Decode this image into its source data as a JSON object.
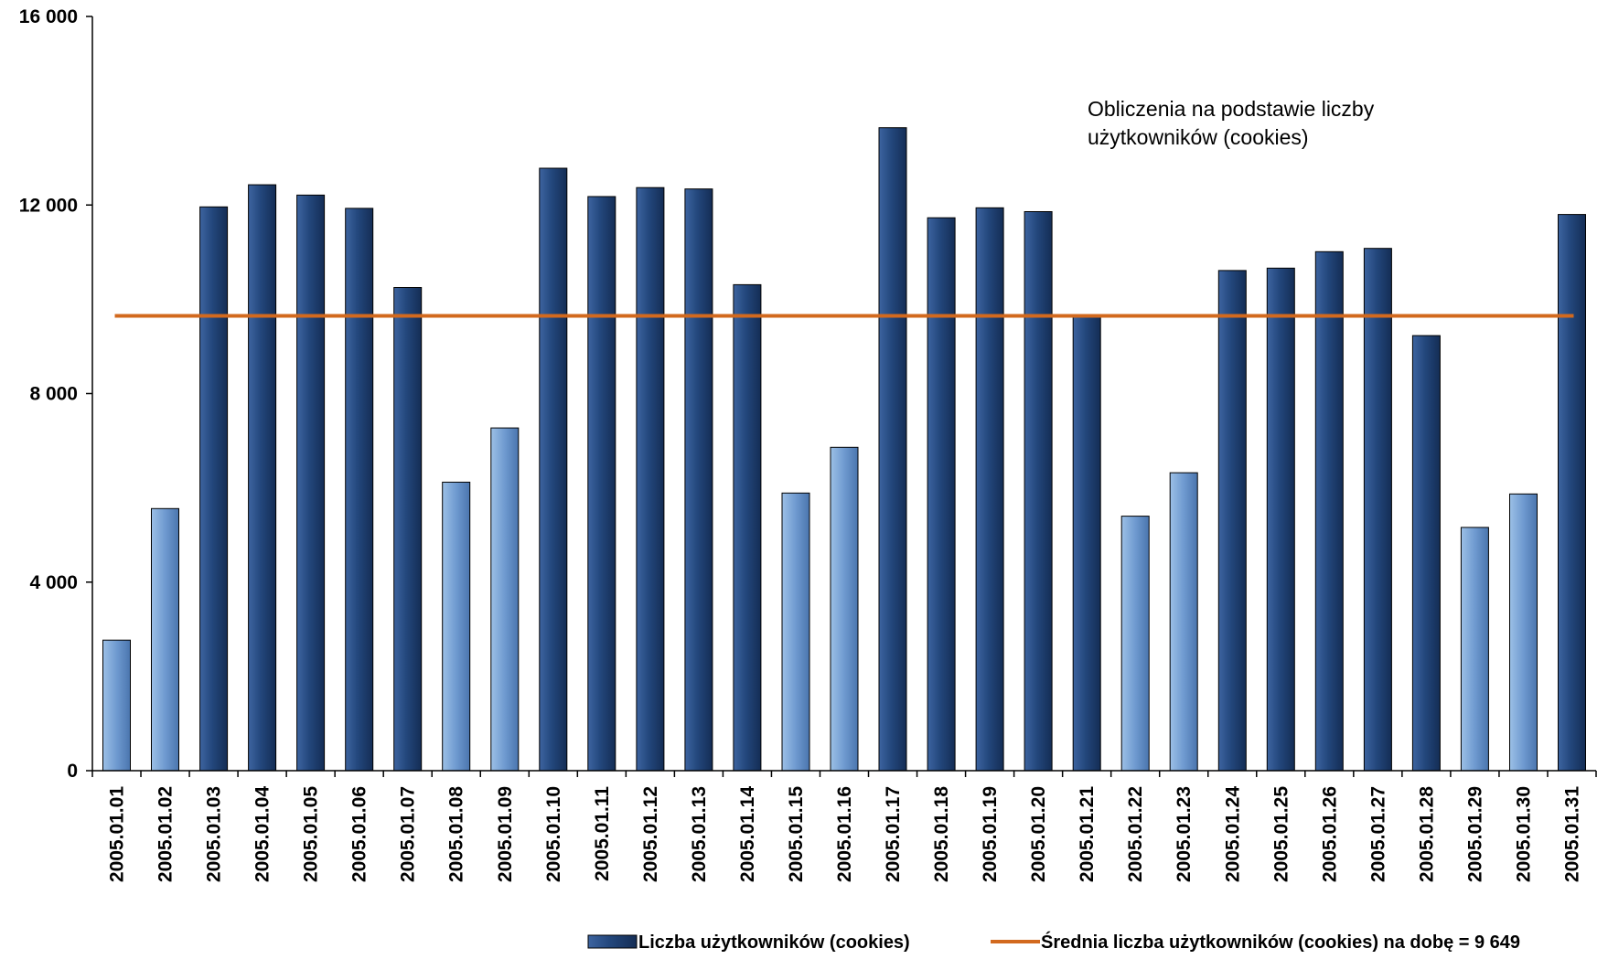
{
  "chart_data": {
    "type": "bar",
    "categories": [
      "2005.01.01",
      "2005.01.02",
      "2005.01.03",
      "2005.01.04",
      "2005.01.05",
      "2005.01.06",
      "2005.01.07",
      "2005.01.08",
      "2005.01.09",
      "2005.01.10",
      "2005.01.11",
      "2005.01.12",
      "2005.01.13",
      "2005.01.14",
      "2005.01.15",
      "2005.01.16",
      "2005.01.17",
      "2005.01.18",
      "2005.01.19",
      "2005.01.20",
      "2005.01.21",
      "2005.01.22",
      "2005.01.23",
      "2005.01.24",
      "2005.01.25",
      "2005.01.26",
      "2005.01.27",
      "2005.01.28",
      "2005.01.29",
      "2005.01.30",
      "2005.01.31"
    ],
    "series": [
      {
        "name": "Liczba użytkowników (cookies)",
        "type": "bar",
        "values": [
          2770,
          5560,
          11960,
          12430,
          12210,
          11930,
          10250,
          6120,
          7270,
          12780,
          12180,
          12370,
          12340,
          10310,
          5890,
          6860,
          13640,
          11730,
          11940,
          11860,
          9620,
          5400,
          6320,
          10610,
          10660,
          11010,
          11080,
          9230,
          5160,
          5870,
          11800
        ],
        "weekend": [
          true,
          true,
          false,
          false,
          false,
          false,
          false,
          true,
          true,
          false,
          false,
          false,
          false,
          false,
          true,
          true,
          false,
          false,
          false,
          false,
          false,
          true,
          true,
          false,
          false,
          false,
          false,
          false,
          true,
          true,
          false
        ]
      },
      {
        "name": "Średnia liczba użytkowników (cookies) na dobę = 9 649",
        "type": "line",
        "value": 9649
      }
    ],
    "y_ticks": [
      "0",
      "4 000",
      "8 000",
      "12 000",
      "16 000"
    ],
    "y_tick_values": [
      0,
      4000,
      8000,
      12000,
      16000
    ],
    "ylim": [
      0,
      16000
    ],
    "annotation": [
      "Obliczenia na podstawie liczby",
      "użytkowników (cookies)"
    ],
    "grid": false,
    "legend_position": "bottom-right",
    "colors": {
      "bar_weekday": "#1f3d6b",
      "bar_weekday_light": "#3d64a0",
      "bar_weekend": "#7fa9d8",
      "bar_weekend_dark": "#4f7bb5",
      "average_line": "#d2691e",
      "axis": "#000000"
    }
  }
}
